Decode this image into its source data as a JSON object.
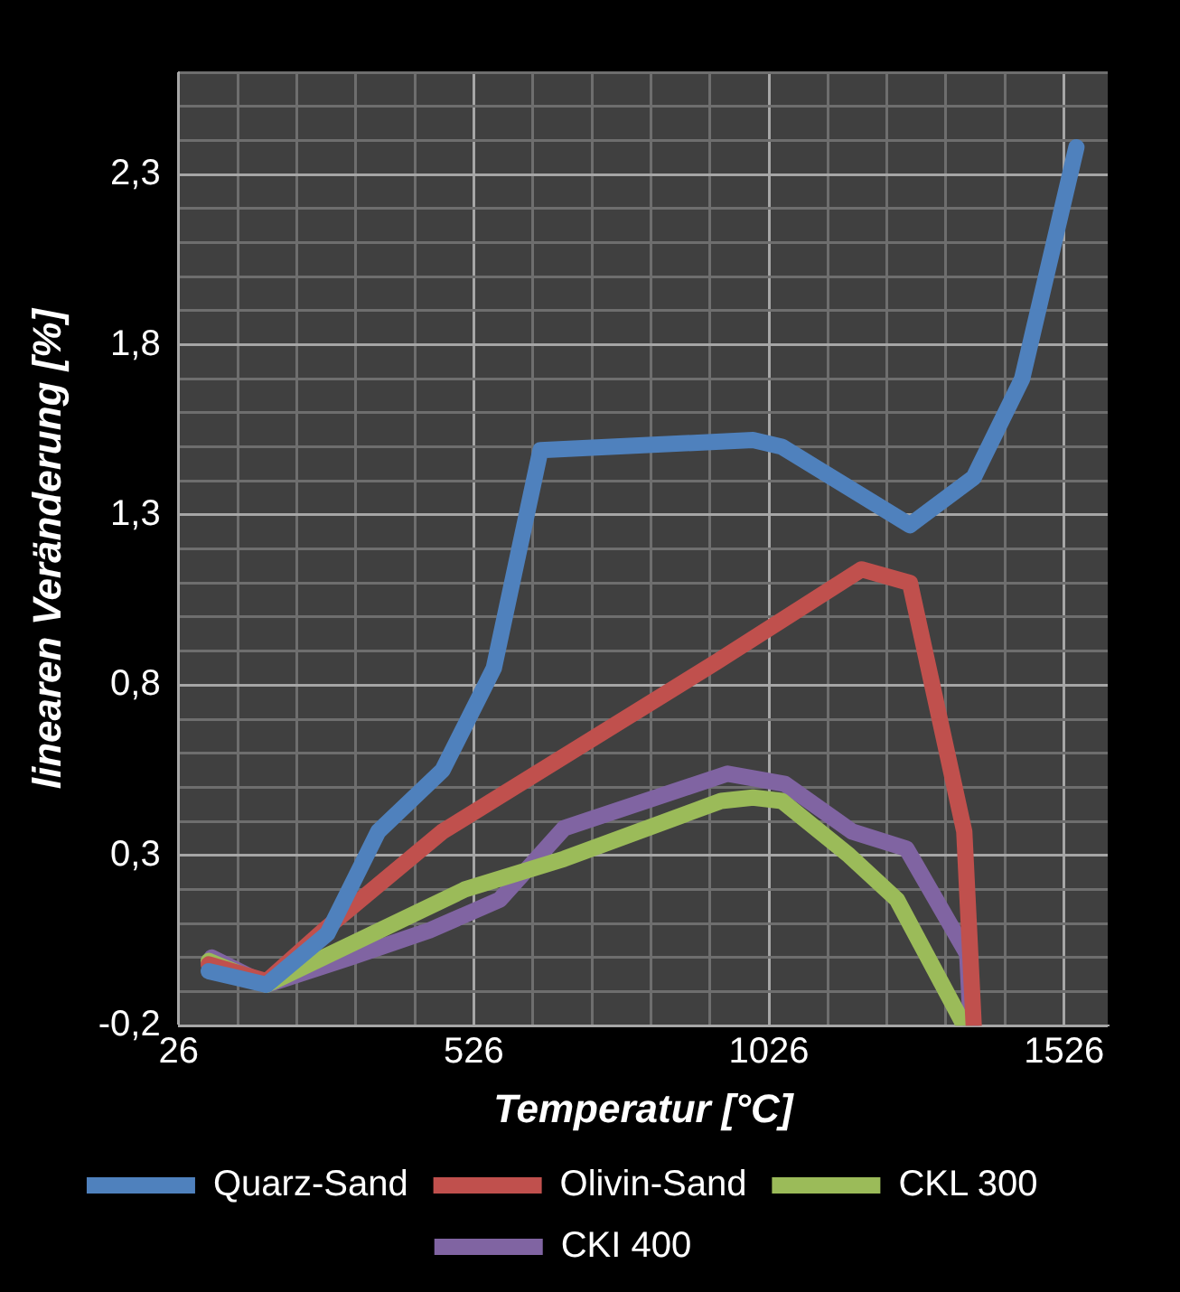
{
  "chart_data": {
    "type": "line",
    "xlabel": "Temperatur [°C]",
    "ylabel": "linearen Veränderung [%]",
    "xlim": [
      26,
      1600
    ],
    "xticks": [
      26,
      {
        "value": 126,
        "label": null
      },
      {
        "value": 226,
        "label": null
      },
      {
        "value": 326,
        "label": null
      },
      {
        "value": 426,
        "label": null
      },
      526,
      {
        "value": 626,
        "label": null
      },
      {
        "value": 726,
        "label": null
      },
      {
        "value": 826,
        "label": null
      },
      {
        "value": 926,
        "label": null
      },
      1026,
      {
        "value": 1126,
        "label": null
      },
      {
        "value": 1226,
        "label": null
      },
      {
        "value": 1326,
        "label": null
      },
      {
        "value": 1426,
        "label": null
      },
      1526
    ],
    "ylim": [
      -0.2,
      2.6
    ],
    "yticks": [
      {
        "value": -0.2,
        "label": "-0,2"
      },
      {
        "value": -0.1,
        "label": null
      },
      {
        "value": 0,
        "label": null
      },
      {
        "value": 0.1,
        "label": null
      },
      {
        "value": 0.2,
        "label": null
      },
      {
        "value": 0.3,
        "label": "0,3"
      },
      {
        "value": 0.4,
        "label": null
      },
      {
        "value": 0.5,
        "label": null
      },
      {
        "value": 0.6,
        "label": null
      },
      {
        "value": 0.7,
        "label": null
      },
      {
        "value": 0.8,
        "label": "0,8"
      },
      {
        "value": 0.9,
        "label": null
      },
      {
        "value": 1.0,
        "label": null
      },
      {
        "value": 1.1,
        "label": null
      },
      {
        "value": 1.2,
        "label": null
      },
      {
        "value": 1.3,
        "label": "1,3"
      },
      {
        "value": 1.4,
        "label": null
      },
      {
        "value": 1.5,
        "label": null
      },
      {
        "value": 1.6,
        "label": null
      },
      {
        "value": 1.7,
        "label": null
      },
      {
        "value": 1.8,
        "label": "1,8"
      },
      {
        "value": 1.9,
        "label": null
      },
      {
        "value": 2.0,
        "label": null
      },
      {
        "value": 2.1,
        "label": null
      },
      {
        "value": 2.2,
        "label": null
      },
      {
        "value": 2.3,
        "label": "2,3"
      },
      {
        "value": 2.4,
        "label": null
      },
      {
        "value": 2.5,
        "label": null
      },
      {
        "value": 2.6,
        "label": null
      }
    ],
    "grid": true,
    "legend": "bottom",
    "marker": "none",
    "line_style": "solid",
    "series": [
      {
        "name": "Quarz-Sand",
        "color": "#4f81bd",
        "x": [
          77,
          175,
          278,
          364,
          473,
          560,
          639,
          999,
          1048,
          1265,
          1373,
          1455,
          1547
        ],
        "values": [
          -0.04,
          -0.08,
          0.07,
          0.37,
          0.55,
          0.85,
          1.49,
          1.52,
          1.5,
          1.27,
          1.41,
          1.7,
          2.38
        ]
      },
      {
        "name": "Olivin-Sand",
        "color": "#c0504d",
        "x": [
          77,
          175,
          272,
          473,
          939,
          1183,
          1265,
          1357,
          1373
        ],
        "values": [
          -0.02,
          -0.07,
          0.08,
          0.37,
          0.87,
          1.14,
          1.1,
          0.37,
          -0.2
        ]
      },
      {
        "name": "CKL 300",
        "color": "#9bbb59",
        "x": [
          77,
          175,
          511,
          679,
          945,
          999,
          1048,
          1162,
          1243,
          1357
        ],
        "values": [
          -0.01,
          -0.08,
          0.2,
          0.29,
          0.46,
          0.47,
          0.46,
          0.3,
          0.17,
          -0.2
        ]
      },
      {
        "name": "CKI 400",
        "color": "#8064a2",
        "x": [
          82,
          175,
          316,
          451,
          570,
          679,
          956,
          1053,
          1167,
          1259,
          1362,
          1368
        ],
        "values": [
          0.0,
          -0.08,
          0.0,
          0.08,
          0.17,
          0.38,
          0.54,
          0.51,
          0.37,
          0.32,
          0.01,
          -0.2
        ]
      }
    ]
  }
}
